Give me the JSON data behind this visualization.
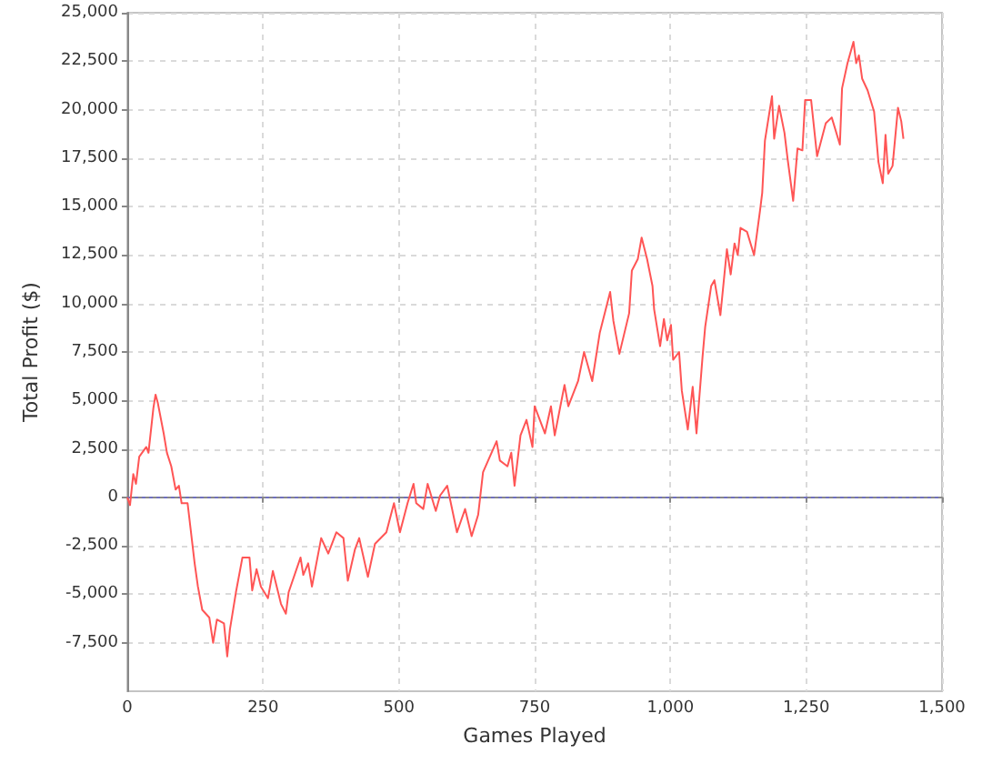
{
  "chart_data": {
    "type": "line",
    "xlabel": "Games Played",
    "ylabel": "Total Profit ($)",
    "xlim": [
      0,
      1500
    ],
    "xticks": [
      0,
      250,
      500,
      750,
      {
        "value": 1000,
        "label": "1,000"
      },
      {
        "value": 1250,
        "label": "1,250"
      },
      {
        "value": 1500,
        "label": "1,500"
      }
    ],
    "ylim": [
      -10000,
      25000
    ],
    "yticks": [
      {
        "value": -7500,
        "label": "-7,500"
      },
      {
        "value": -5000,
        "label": "-5,000"
      },
      {
        "value": -2500,
        "label": "-2,500"
      },
      0,
      {
        "value": 2500,
        "label": "2,500"
      },
      {
        "value": 5000,
        "label": "5,000"
      },
      {
        "value": 7500,
        "label": "7,500"
      },
      {
        "value": 10000,
        "label": "10,000"
      },
      {
        "value": 12500,
        "label": "12,500"
      },
      {
        "value": 15000,
        "label": "15,000"
      },
      {
        "value": 17500,
        "label": "17,500"
      },
      {
        "value": 20000,
        "label": "20,000"
      },
      {
        "value": 22500,
        "label": "22,500"
      },
      {
        "value": 25000,
        "label": "25,000"
      }
    ],
    "grid": true,
    "color": "#ff5555",
    "ref_lines": [
      {
        "axis": "y",
        "value": 0,
        "color": "#6a6ad0",
        "line_style": "dashed"
      }
    ],
    "x": [
      0,
      5,
      11,
      16,
      22,
      35,
      39,
      48,
      52,
      56,
      67,
      73,
      81,
      89,
      95,
      100,
      111,
      124,
      130,
      138,
      151,
      158,
      165,
      178,
      184,
      189,
      200,
      212,
      225,
      230,
      238,
      246,
      259,
      268,
      283,
      292,
      297,
      319,
      324,
      333,
      340,
      357,
      370,
      385,
      398,
      406,
      419,
      427,
      443,
      456,
      477,
      491,
      502,
      516,
      527,
      532,
      545,
      553,
      568,
      576,
      589,
      607,
      622,
      634,
      646,
      655,
      680,
      686,
      700,
      707,
      713,
      724,
      735,
      746,
      750,
      769,
      780,
      787,
      805,
      812,
      830,
      841,
      856,
      870,
      889,
      895,
      906,
      924,
      929,
      940,
      947,
      957,
      967,
      970,
      981,
      988,
      994,
      1001,
      1005,
      1016,
      1021,
      1032,
      1041,
      1048,
      1059,
      1064,
      1075,
      1081,
      1092,
      1104,
      1111,
      1118,
      1124,
      1129,
      1141,
      1154,
      1165,
      1169,
      1174,
      1187,
      1191,
      1200,
      1210,
      1216,
      1226,
      1234,
      1243,
      1248,
      1259,
      1270,
      1286,
      1297,
      1312,
      1316,
      1326,
      1337,
      1342,
      1347,
      1353,
      1363,
      1375,
      1383,
      1391,
      1396,
      1401,
      1409,
      1419,
      1425,
      1429
    ],
    "values": [
      0,
      -400,
      1200,
      700,
      2100,
      2600,
      2300,
      4600,
      5300,
      4900,
      3300,
      2300,
      1600,
      400,
      600,
      -300,
      -300,
      -3400,
      -4600,
      -5800,
      -6200,
      -7500,
      -6300,
      -6500,
      -8200,
      -6800,
      -4900,
      -3100,
      -3100,
      -4800,
      -3700,
      -4600,
      -5200,
      -3800,
      -5500,
      -6000,
      -4900,
      -3100,
      -4000,
      -3400,
      -4600,
      -2100,
      -2900,
      -1800,
      -2100,
      -4300,
      -2700,
      -2100,
      -4100,
      -2400,
      -1800,
      -300,
      -1800,
      -300,
      700,
      -300,
      -600,
      700,
      -700,
      100,
      600,
      -1800,
      -600,
      -2000,
      -900,
      1300,
      2900,
      1900,
      1600,
      2300,
      600,
      3200,
      4000,
      2600,
      4700,
      3300,
      4700,
      3200,
      5800,
      4700,
      6000,
      7500,
      6000,
      8500,
      10600,
      9100,
      7400,
      9500,
      11700,
      12300,
      13400,
      12300,
      10900,
      9700,
      7800,
      9200,
      8100,
      8900,
      7100,
      7500,
      5500,
      3500,
      5700,
      3300,
      7200,
      8800,
      10900,
      11200,
      9400,
      12800,
      11500,
      13100,
      12500,
      13900,
      13700,
      12500,
      14800,
      15700,
      18400,
      20700,
      18500,
      20200,
      18800,
      17400,
      15300,
      18000,
      17900,
      20500,
      20500,
      17600,
      19300,
      19600,
      18200,
      21100,
      22400,
      23500,
      22400,
      22800,
      21600,
      21000,
      19900,
      17300,
      16200,
      18700,
      16700,
      17100,
      20100,
      19400,
      18500
    ]
  }
}
